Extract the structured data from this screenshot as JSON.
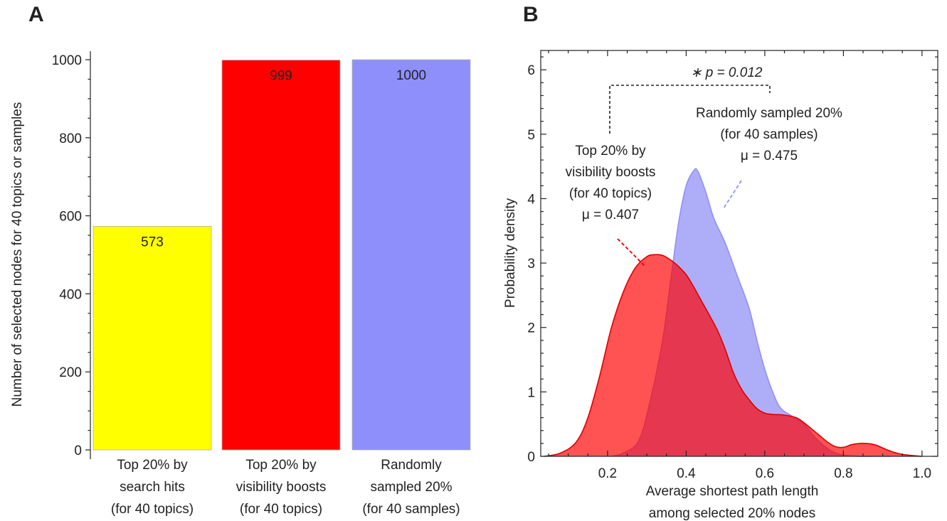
{
  "chart_data": [
    {
      "panel_label": "A",
      "type": "bar",
      "categories": [
        [
          "Top 20% by",
          "search hits",
          "(for 40 topics)"
        ],
        [
          "Top 20% by",
          "visibility boosts",
          "(for 40 topics)"
        ],
        [
          "Randomly",
          "sampled 20%",
          "(for 40 samples)"
        ]
      ],
      "values": [
        573,
        999,
        1000
      ],
      "value_labels": [
        "573",
        "999",
        "1000"
      ],
      "colors": [
        "#ffff00",
        "#ff0000",
        "#8f8ffb"
      ],
      "ylabel": "Number of selected nodes for 40 topics or samples",
      "ylim": [
        0,
        1000
      ],
      "yticks": [
        0,
        200,
        400,
        600,
        800,
        1000
      ],
      "grid": false
    },
    {
      "panel_label": "B",
      "type": "area",
      "xlabel": [
        "Average shortest path length",
        "among selected 20% nodes"
      ],
      "ylabel": "Probability density",
      "xlim": [
        0.03,
        1.04
      ],
      "ylim": [
        0,
        6.3
      ],
      "xticks": [
        0.2,
        0.4,
        0.6,
        0.8,
        1.0
      ],
      "xtick_labels": [
        "0.2",
        "0.4",
        "0.6",
        "0.8",
        "1.0"
      ],
      "yticks": [
        0,
        1,
        2,
        3,
        4,
        5,
        6
      ],
      "grid": false,
      "series": [
        {
          "id": "random",
          "fill": "#aeaef8",
          "stroke": "#8f8ffb",
          "x": [
            0.21,
            0.24,
            0.28,
            0.31,
            0.34,
            0.36,
            0.38,
            0.4,
            0.42,
            0.43,
            0.45,
            0.47,
            0.5,
            0.53,
            0.56,
            0.58,
            0.6,
            0.62,
            0.64,
            0.67,
            0.7,
            0.72,
            0.74,
            0.77,
            0.8,
            0.84,
            0.88,
            0.92
          ],
          "y": [
            0.0,
            0.05,
            0.25,
            0.9,
            1.8,
            2.7,
            3.6,
            4.2,
            4.44,
            4.42,
            4.1,
            3.7,
            3.3,
            2.8,
            2.3,
            1.8,
            1.35,
            1.0,
            0.75,
            0.62,
            0.5,
            0.35,
            0.22,
            0.08,
            0.02,
            0.0,
            0.0,
            0.0
          ]
        },
        {
          "id": "top-visibility",
          "fill": "#ff0000",
          "fill_opacity": 0.68,
          "stroke": "#dd0000",
          "x": [
            0.04,
            0.08,
            0.12,
            0.15,
            0.18,
            0.21,
            0.24,
            0.27,
            0.3,
            0.32,
            0.34,
            0.36,
            0.38,
            0.4,
            0.42,
            0.44,
            0.46,
            0.48,
            0.5,
            0.52,
            0.54,
            0.56,
            0.58,
            0.6,
            0.62,
            0.65,
            0.68,
            0.7,
            0.72,
            0.74,
            0.76,
            0.78,
            0.8,
            0.82,
            0.84,
            0.86,
            0.88,
            0.9,
            0.92,
            0.95,
            1.0
          ],
          "y": [
            0.0,
            0.05,
            0.22,
            0.6,
            1.25,
            2.0,
            2.55,
            2.92,
            3.1,
            3.13,
            3.12,
            3.05,
            2.95,
            2.82,
            2.62,
            2.4,
            2.18,
            1.95,
            1.65,
            1.3,
            1.05,
            0.88,
            0.74,
            0.67,
            0.65,
            0.64,
            0.6,
            0.52,
            0.42,
            0.32,
            0.22,
            0.15,
            0.14,
            0.18,
            0.2,
            0.2,
            0.18,
            0.13,
            0.08,
            0.03,
            0.0
          ]
        }
      ],
      "annotations": {
        "significance": "∗ p = 0.012",
        "red_label": [
          "Top 20% by",
          "visibility boosts",
          "(for 40 topics)",
          "μ = 0.407"
        ],
        "blue_label": [
          "Randomly sampled 20%",
          "(for 40 samples)",
          "μ = 0.475"
        ]
      }
    }
  ]
}
